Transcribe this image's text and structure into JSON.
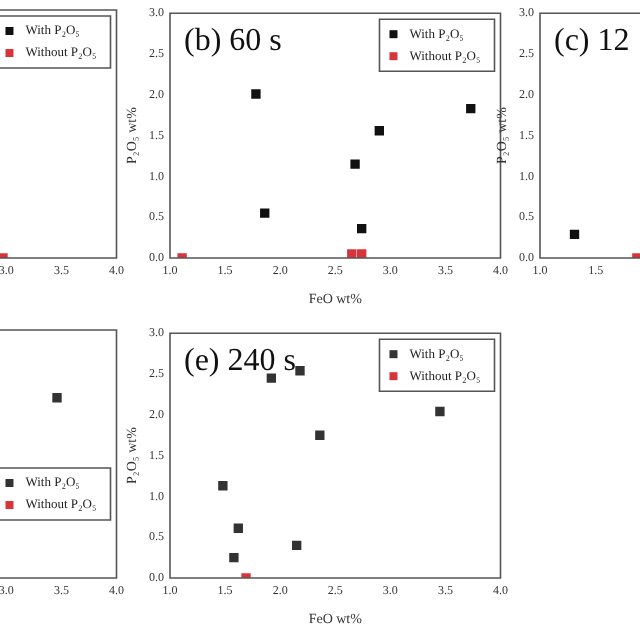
{
  "chart_data": [
    {
      "type": "scatter",
      "marker": "square",
      "legend": "top right",
      "tick_labels": "x",
      "xlim": [
        1,
        4
      ],
      "ylim": [
        0,
        3
      ],
      "xticks": [
        {
          "value": 3,
          "label": "3.0"
        },
        {
          "value": 3.5,
          "label": "3.5"
        },
        {
          "value": 4,
          "label": "4.0"
        }
      ],
      "series": [
        {
          "name": "With P₂O₅",
          "color": "#111111"
        },
        {
          "name": "Without P₂O₅",
          "color": "#d9343a",
          "x": [
            2.97
          ],
          "values": [
            0
          ]
        }
      ]
    },
    {
      "type": "scatter",
      "title": "(b) 60 s",
      "xlabel": "FeO wt%",
      "ylabel": "P₂O₅ wt%",
      "marker": "square",
      "legend": "top right",
      "xlim": [
        1,
        4
      ],
      "ylim": [
        0,
        3
      ],
      "xticks": [
        {
          "value": 1,
          "label": "1.0"
        },
        {
          "value": 1.5,
          "label": "1.5"
        },
        {
          "value": 2,
          "label": "2.0"
        },
        {
          "value": 2.5,
          "label": "2.5"
        },
        {
          "value": 3,
          "label": "3.0"
        },
        {
          "value": 3.5,
          "label": "3.5"
        },
        {
          "value": 4,
          "label": "4.0"
        }
      ],
      "yticks": [
        {
          "value": 0,
          "label": "0.0"
        },
        {
          "value": 0.5,
          "label": "0.5"
        },
        {
          "value": 1,
          "label": "1.0"
        },
        {
          "value": 1.5,
          "label": "1.5"
        },
        {
          "value": 2,
          "label": "2.0"
        },
        {
          "value": 2.5,
          "label": "2.5"
        },
        {
          "value": 3,
          "label": "3.0"
        }
      ],
      "series": [
        {
          "name": "With P₂O₅",
          "color": "#111111",
          "x": [
            1.78,
            1.86,
            2.68,
            2.9,
            3.73,
            2.74
          ],
          "values": [
            2.01,
            0.55,
            1.15,
            1.56,
            1.83,
            0.36
          ]
        },
        {
          "name": "Without P₂O₅",
          "color": "#d9343a",
          "x": [
            1.11,
            2.65,
            2.74
          ],
          "values": [
            0,
            0.05,
            0.05
          ]
        }
      ]
    },
    {
      "type": "scatter",
      "title": "(c) 12",
      "ylabel": "P₂O₅ wt%",
      "marker": "square",
      "xlim": [
        1,
        4
      ],
      "ylim": [
        0,
        3
      ],
      "xticks": [
        {
          "value": 1,
          "label": "1.0"
        },
        {
          "value": 1.5,
          "label": "1.5"
        }
      ],
      "yticks": [
        {
          "value": 0,
          "label": "0.0"
        },
        {
          "value": 0.5,
          "label": "0.5"
        },
        {
          "value": 1,
          "label": "1.0"
        },
        {
          "value": 1.5,
          "label": "1.5"
        },
        {
          "value": 2,
          "label": "2.0"
        },
        {
          "value": 2.5,
          "label": "2.5"
        },
        {
          "value": 3,
          "label": "3.0"
        }
      ],
      "series": [
        {
          "color": "#111111",
          "x": [
            1.31
          ],
          "values": [
            0.29
          ]
        },
        {
          "color": "#d9343a",
          "x": [
            1.87
          ],
          "values": [
            0
          ]
        }
      ]
    },
    {
      "type": "scatter",
      "marker": "square",
      "legend": "right",
      "tick_labels": "x",
      "xlim": [
        1,
        4
      ],
      "ylim": [
        0,
        3
      ],
      "xticks": [
        {
          "value": 3,
          "label": "3.0"
        },
        {
          "value": 3.5,
          "label": "3.5"
        },
        {
          "value": 4,
          "label": "4.0"
        }
      ],
      "series": [
        {
          "name": "With P₂O₅",
          "color": "#333333",
          "x": [
            3.46
          ],
          "values": [
            2.18
          ]
        },
        {
          "name": "Without P₂O₅",
          "color": "#d9343a"
        }
      ]
    },
    {
      "type": "scatter",
      "title": "(e) 240 s",
      "xlabel": "FeO wt%",
      "ylabel": "P₂O₅ wt%",
      "marker": "square",
      "legend": "top right",
      "xlim": [
        1,
        4
      ],
      "ylim": [
        0,
        3
      ],
      "xticks": [
        {
          "value": 1,
          "label": "1.0"
        },
        {
          "value": 1.5,
          "label": "1.5"
        },
        {
          "value": 2,
          "label": "2.0"
        },
        {
          "value": 2.5,
          "label": "2.5"
        },
        {
          "value": 3,
          "label": "3.0"
        },
        {
          "value": 3.5,
          "label": "3.5"
        },
        {
          "value": 4,
          "label": "4.0"
        }
      ],
      "yticks": [
        {
          "value": 0,
          "label": "0.0"
        },
        {
          "value": 0.5,
          "label": "0.5"
        },
        {
          "value": 1,
          "label": "1.0"
        },
        {
          "value": 1.5,
          "label": "1.5"
        },
        {
          "value": 2,
          "label": "2.0"
        },
        {
          "value": 2.5,
          "label": "2.5"
        },
        {
          "value": 3,
          "label": "3.0"
        }
      ],
      "series": [
        {
          "name": "With P₂O₅",
          "color": "#333333",
          "x": [
            1.48,
            1.62,
            1.58,
            1.92,
            2.18,
            2.15,
            2.36,
            3.45
          ],
          "values": [
            1.13,
            0.61,
            0.25,
            2.45,
            2.54,
            0.4,
            1.75,
            2.04
          ]
        },
        {
          "name": "Without P₂O₅",
          "color": "#d9343a",
          "x": [
            1.69
          ],
          "values": [
            0
          ]
        }
      ]
    }
  ]
}
